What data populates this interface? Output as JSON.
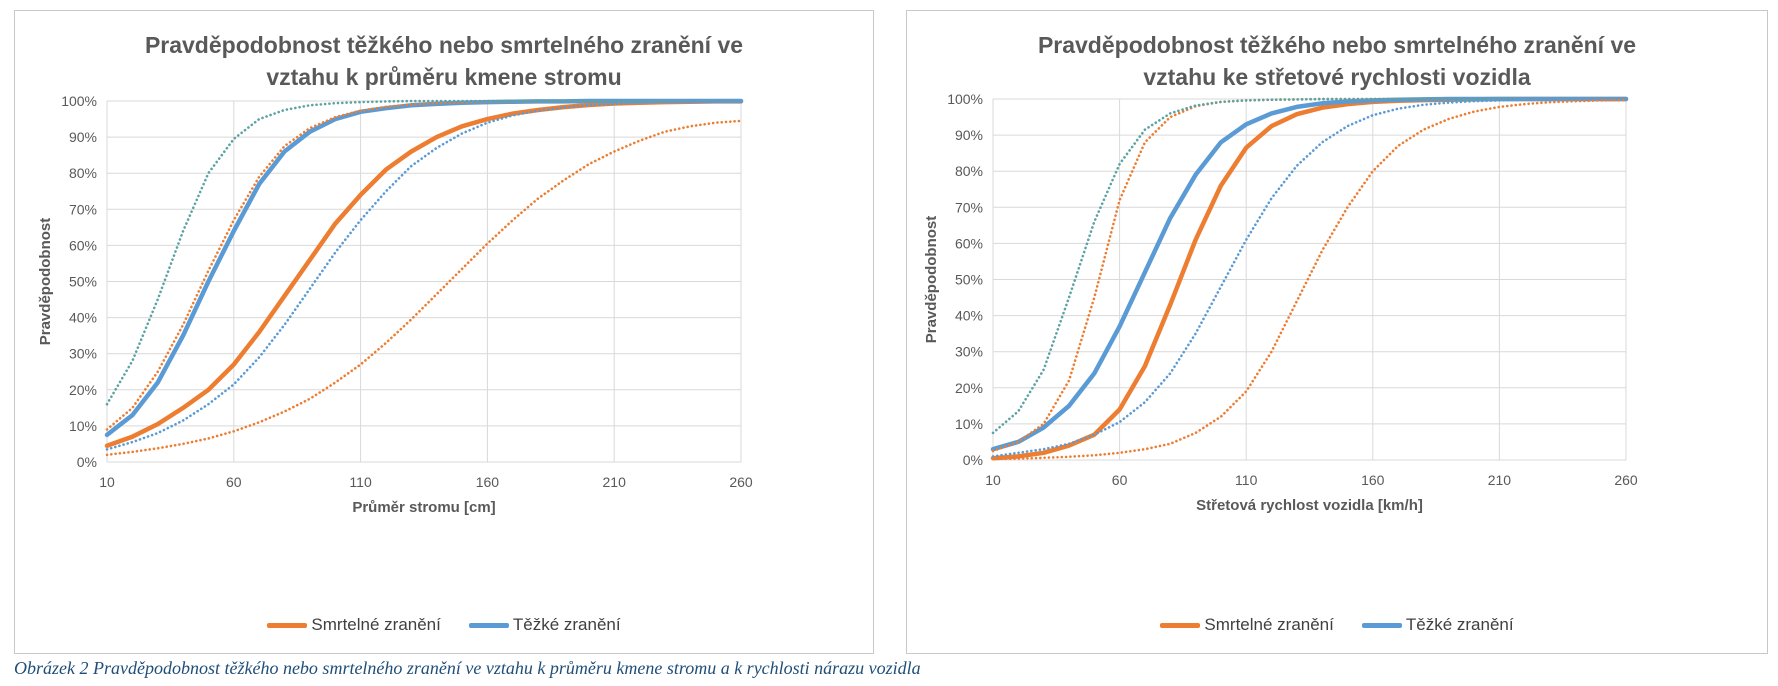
{
  "caption": "Obrázek 2 Pravděpodobnost těžkého nebo smrtelného zranění ve vztahu k průměru kmene stromu a k rychlosti nárazu vozidla",
  "colors": {
    "smrtelne": "#ED7D31",
    "tezke": "#5B9BD5",
    "tezke_upper": "#5BA3A3",
    "grid": "#d9d9d9",
    "axis_text": "#595959"
  },
  "chart_data": [
    {
      "type": "line",
      "title_line1": "Pravděpodobnost těžkého nebo smrtelného zranění ve",
      "title_line2": "vztahu k průměru kmene stromu",
      "xlabel": "Průměr stromu [cm]",
      "ylabel": "Pravděpodobnost",
      "xlim": [
        10,
        260
      ],
      "ylim": [
        0,
        100
      ],
      "x_ticks": [
        "10",
        "60",
        "110",
        "160",
        "210",
        "260"
      ],
      "y_ticks": [
        "0%",
        "10%",
        "20%",
        "30%",
        "40%",
        "50%",
        "60%",
        "70%",
        "80%",
        "90%",
        "100%"
      ],
      "legend": [
        {
          "label": "Smrtelné zranění",
          "color": "#ED7D31"
        },
        {
          "label": "Těžké zranění",
          "color": "#5B9BD5"
        }
      ],
      "x": [
        10,
        20,
        30,
        40,
        50,
        60,
        70,
        80,
        90,
        100,
        110,
        120,
        130,
        140,
        150,
        160,
        170,
        180,
        190,
        200,
        210,
        220,
        230,
        240,
        250,
        260
      ],
      "series": [
        {
          "color": "#ED7D31",
          "style": "solid",
          "values": [
            4.5,
            7,
            10.5,
            15,
            20,
            27,
            36,
            46,
            56,
            66,
            74,
            81,
            86,
            90,
            93,
            95,
            96.5,
            97.5,
            98.3,
            98.9,
            99.3,
            99.5,
            99.7,
            99.8,
            99.9,
            99.9
          ]
        },
        {
          "color": "#5B9BD5",
          "style": "solid",
          "values": [
            7.5,
            13,
            22,
            35,
            50,
            64,
            77,
            86,
            91.5,
            95,
            97,
            98,
            98.8,
            99.2,
            99.5,
            99.7,
            99.8,
            99.9,
            99.9,
            100,
            100,
            100,
            100,
            100,
            100,
            100
          ]
        },
        {
          "color": "#ED7D31",
          "style": "dotted",
          "values": [
            9,
            15,
            25,
            38,
            53,
            67,
            79,
            87.5,
            92.5,
            95.5,
            97.3,
            98.4,
            99,
            99.4,
            99.6,
            99.8,
            99.9,
            99.9,
            100,
            100,
            100,
            100,
            100,
            100,
            100,
            100
          ]
        },
        {
          "color": "#5BA3A3",
          "style": "dotted",
          "values": [
            16,
            28,
            45,
            64,
            80,
            89.5,
            95,
            97.5,
            98.8,
            99.4,
            99.7,
            99.9,
            100,
            100,
            100,
            100,
            100,
            100,
            100,
            100,
            100,
            100,
            100,
            100,
            100,
            100
          ]
        },
        {
          "color": "#5B9BD5",
          "style": "dotted",
          "values": [
            3.5,
            5.5,
            8,
            11.5,
            16,
            21.5,
            29,
            38,
            48,
            58,
            67,
            75,
            82,
            87,
            91,
            94,
            96,
            97.3,
            98.2,
            98.8,
            99.2,
            99.5,
            99.7,
            99.8,
            99.9,
            99.9
          ]
        },
        {
          "color": "#ED7D31",
          "style": "dotted",
          "values": [
            2,
            2.8,
            3.8,
            5,
            6.5,
            8.5,
            11,
            14,
            17.5,
            22,
            27,
            33,
            39.5,
            46.5,
            53.5,
            60.5,
            67,
            73,
            78,
            82.5,
            86,
            89,
            91.5,
            93,
            94,
            94.5
          ]
        }
      ]
    },
    {
      "type": "line",
      "title_line1": "Pravděpodobnost těžkého nebo smrtelného zranění ve",
      "title_line2": "vztahu ke střetové rychlosti vozidla",
      "xlabel": "Střetová rychlost vozidla [km/h]",
      "ylabel": "Pravděpodobnost",
      "xlim": [
        10,
        260
      ],
      "ylim": [
        0,
        100
      ],
      "x_ticks": [
        "10",
        "60",
        "110",
        "160",
        "210",
        "260"
      ],
      "y_ticks": [
        "0%",
        "10%",
        "20%",
        "30%",
        "40%",
        "50%",
        "60%",
        "70%",
        "80%",
        "90%",
        "100%"
      ],
      "legend": [
        {
          "label": "Smrtelné zranění",
          "color": "#ED7D31"
        },
        {
          "label": "Těžké zranění",
          "color": "#5B9BD5"
        }
      ],
      "x": [
        10,
        20,
        30,
        40,
        50,
        60,
        70,
        80,
        90,
        100,
        110,
        120,
        130,
        140,
        150,
        160,
        170,
        180,
        190,
        200,
        210,
        220,
        230,
        240,
        250,
        260
      ],
      "series": [
        {
          "color": "#ED7D31",
          "style": "solid",
          "values": [
            0.5,
            1,
            2,
            4,
            7,
            14,
            26,
            43,
            61,
            76,
            86.5,
            92.5,
            95.8,
            97.6,
            98.6,
            99.2,
            99.5,
            99.7,
            99.8,
            99.9,
            100,
            100,
            100,
            100,
            100,
            100
          ]
        },
        {
          "color": "#5B9BD5",
          "style": "solid",
          "values": [
            3,
            5,
            9,
            15,
            24,
            37,
            52,
            67,
            79,
            88,
            93,
            96,
            97.8,
            98.8,
            99.3,
            99.6,
            99.8,
            99.9,
            100,
            100,
            100,
            100,
            100,
            100,
            100,
            100
          ]
        },
        {
          "color": "#ED7D31",
          "style": "dotted",
          "values": [
            2.5,
            5,
            10,
            22,
            45,
            72,
            88,
            95,
            98,
            99.2,
            99.6,
            99.8,
            99.9,
            100,
            100,
            100,
            100,
            100,
            100,
            100,
            100,
            100,
            100,
            100,
            100,
            100
          ]
        },
        {
          "color": "#5BA3A3",
          "style": "dotted",
          "values": [
            7.5,
            13.5,
            25,
            45,
            66,
            82,
            91.5,
            96,
            98.2,
            99.2,
            99.6,
            99.8,
            99.9,
            100,
            100,
            100,
            100,
            100,
            100,
            100,
            100,
            100,
            100,
            100,
            100,
            100
          ]
        },
        {
          "color": "#5B9BD5",
          "style": "dotted",
          "values": [
            1,
            2,
            3,
            4.5,
            7,
            10.5,
            16,
            24,
            35,
            48,
            61,
            72.5,
            81.5,
            88,
            92.5,
            95.5,
            97.3,
            98.4,
            99,
            99.4,
            99.6,
            99.8,
            99.9,
            99.9,
            100,
            100
          ]
        },
        {
          "color": "#ED7D31",
          "style": "dotted",
          "values": [
            0.3,
            0.4,
            0.6,
            0.9,
            1.3,
            2,
            3,
            4.5,
            7.5,
            12,
            19,
            30,
            44,
            58,
            70,
            80,
            87,
            91.5,
            94.5,
            96.5,
            97.8,
            98.6,
            99.1,
            99.4,
            99.6,
            99.7
          ]
        }
      ]
    }
  ]
}
